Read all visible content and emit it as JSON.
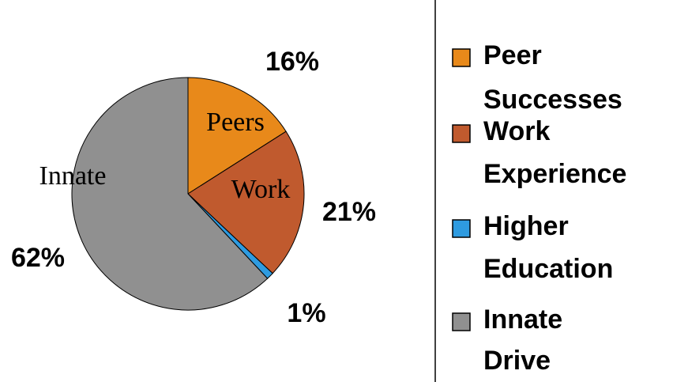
{
  "chart_data": {
    "type": "pie",
    "categories": [
      "Peer Successes",
      "Work Experience",
      "Higher Education",
      "Innate Drive"
    ],
    "values": [
      16,
      21,
      1,
      62
    ],
    "value_labels": [
      "16%",
      "21%",
      "1%",
      "62%"
    ],
    "slice_labels": [
      "Peers",
      "Work",
      null,
      "Innate"
    ],
    "colors": [
      "#e8891a",
      "#c05a2e",
      "#2e9be0",
      "#909090"
    ],
    "legend": "right"
  }
}
